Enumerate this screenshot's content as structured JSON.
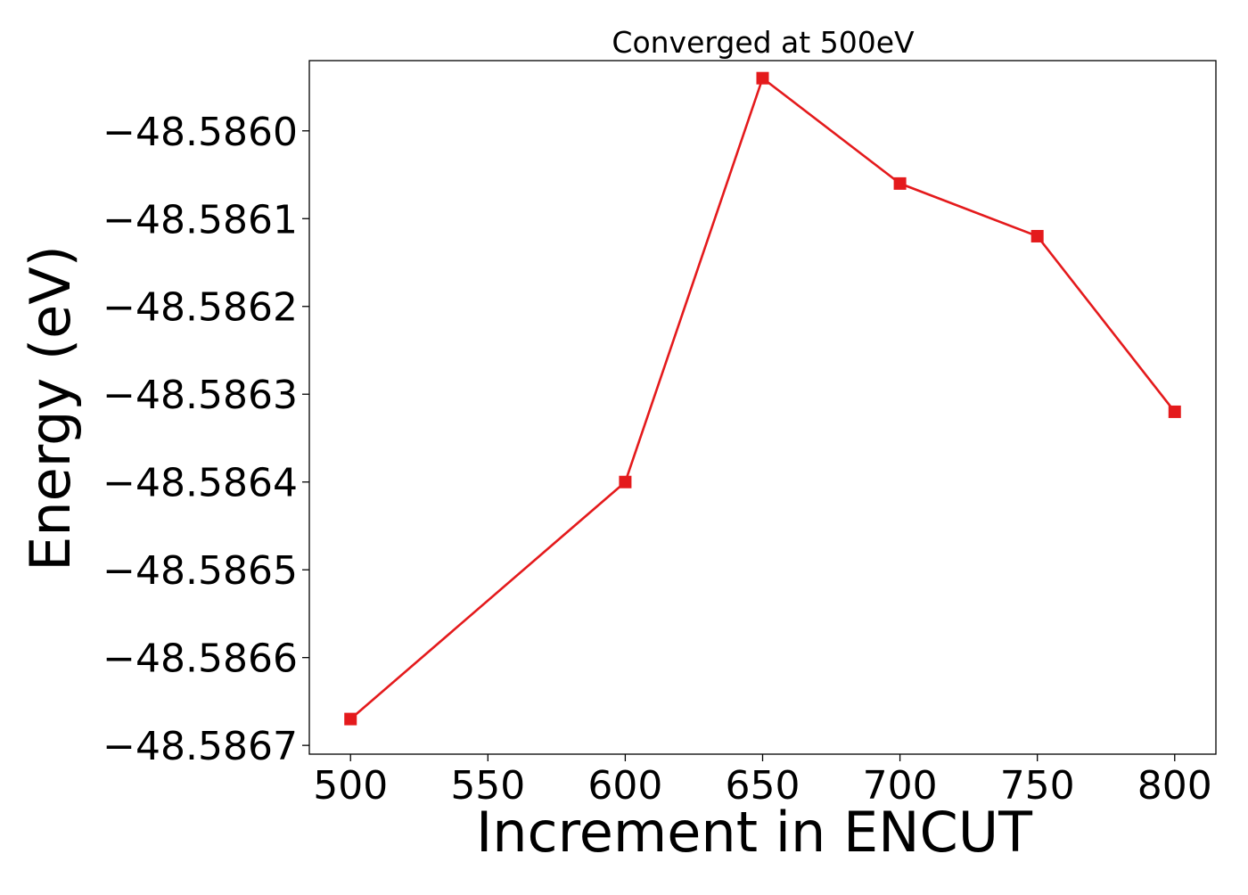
{
  "chart_data": {
    "type": "line",
    "title": "Converged at 500eV",
    "xlabel": "Increment in ENCUT",
    "ylabel": "Energy (eV)",
    "x": [
      500,
      600,
      650,
      700,
      750,
      800
    ],
    "series": [
      {
        "values": [
          -48.58667,
          -48.5864,
          -48.58594,
          -48.58606,
          -48.58612,
          -48.58632
        ],
        "color": "#e41a1c",
        "marker": "square"
      }
    ],
    "xticks": [
      500,
      550,
      600,
      650,
      700,
      750,
      800
    ],
    "xtick_labels": [
      "500",
      "550",
      "600",
      "650",
      "700",
      "750",
      "800"
    ],
    "yticks": [
      -48.586,
      -48.5861,
      -48.5862,
      -48.5863,
      -48.5864,
      -48.5865,
      -48.5866,
      -48.5867
    ],
    "ytick_labels": [
      "−48.5860",
      "−48.5861",
      "−48.5862",
      "−48.5863",
      "−48.5864",
      "−48.5865",
      "−48.5866",
      "−48.5867"
    ],
    "xlim": [
      485,
      815
    ],
    "ylim": [
      -48.58671,
      -48.58592
    ],
    "grid": false,
    "legend": "none"
  }
}
